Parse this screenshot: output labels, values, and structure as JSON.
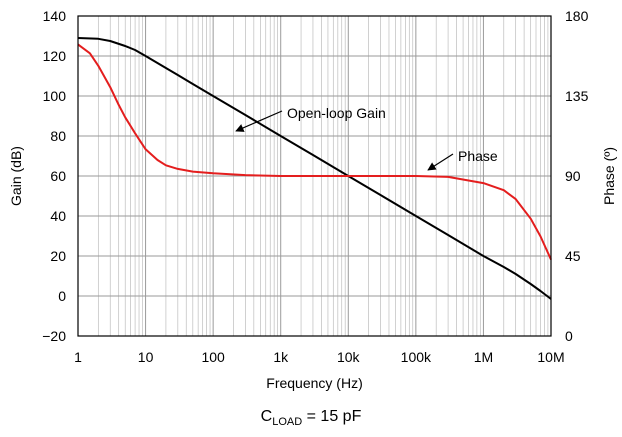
{
  "caption": {
    "prefix": "C",
    "subscript": "LOAD",
    "suffix": " = 15 pF"
  },
  "chart_data": {
    "type": "line",
    "xlabel": "Frequency (Hz)",
    "ylabel": "Gain (dB)",
    "y2label": "Phase (º)",
    "xscale": "log",
    "xlim": [
      1,
      10000000
    ],
    "ylim": [
      -20,
      140
    ],
    "y2lim": [
      0,
      180
    ],
    "grid": true,
    "x_ticks": [
      {
        "v": 1,
        "label": "1"
      },
      {
        "v": 10,
        "label": "10"
      },
      {
        "v": 100,
        "label": "100"
      },
      {
        "v": 1000,
        "label": "1k"
      },
      {
        "v": 10000,
        "label": "10k"
      },
      {
        "v": 100000,
        "label": "100k"
      },
      {
        "v": 1000000,
        "label": "1M"
      },
      {
        "v": 10000000,
        "label": "10M"
      }
    ],
    "y_ticks": [
      {
        "v": -20,
        "label": "−20"
      },
      {
        "v": 0,
        "label": "0"
      },
      {
        "v": 20,
        "label": "20"
      },
      {
        "v": 40,
        "label": "40"
      },
      {
        "v": 60,
        "label": "60"
      },
      {
        "v": 80,
        "label": "80"
      },
      {
        "v": 100,
        "label": "100"
      },
      {
        "v": 120,
        "label": "120"
      },
      {
        "v": 140,
        "label": "140"
      }
    ],
    "y2_ticks": [
      {
        "v": 0,
        "label": "0"
      },
      {
        "v": 45,
        "label": "45"
      },
      {
        "v": 90,
        "label": "90"
      },
      {
        "v": 135,
        "label": "135"
      },
      {
        "v": 180,
        "label": "180"
      }
    ],
    "series": [
      {
        "name": "Open-loop Gain",
        "axis": "left",
        "color": "#000000",
        "points": [
          [
            1,
            129
          ],
          [
            2,
            128.6
          ],
          [
            3,
            127.5
          ],
          [
            5,
            125
          ],
          [
            7,
            123
          ],
          [
            10,
            120
          ],
          [
            20,
            114
          ],
          [
            30,
            110.5
          ],
          [
            50,
            106
          ],
          [
            100,
            100
          ],
          [
            300,
            90.5
          ],
          [
            1000,
            80
          ],
          [
            3000,
            70.5
          ],
          [
            10000,
            60
          ],
          [
            30000,
            50.5
          ],
          [
            100000,
            40
          ],
          [
            300000,
            30.5
          ],
          [
            1000000,
            20
          ],
          [
            2000000,
            14.5
          ],
          [
            3000000,
            11
          ],
          [
            5000000,
            6
          ],
          [
            7000000,
            2.5
          ],
          [
            10000000,
            -1.5
          ]
        ]
      },
      {
        "name": "Phase",
        "axis": "right",
        "color": "#e41e1e",
        "points": [
          [
            1,
            164
          ],
          [
            1.5,
            159
          ],
          [
            2,
            152
          ],
          [
            3,
            140
          ],
          [
            4,
            130
          ],
          [
            5,
            123
          ],
          [
            7,
            114
          ],
          [
            10,
            105
          ],
          [
            15,
            99
          ],
          [
            20,
            96
          ],
          [
            30,
            94
          ],
          [
            50,
            92.5
          ],
          [
            100,
            91.5
          ],
          [
            300,
            90.5
          ],
          [
            1000,
            90
          ],
          [
            10000,
            90
          ],
          [
            100000,
            90
          ],
          [
            300000,
            89.5
          ],
          [
            1000000,
            86
          ],
          [
            2000000,
            82
          ],
          [
            3000000,
            77
          ],
          [
            5000000,
            66
          ],
          [
            7000000,
            56
          ],
          [
            10000000,
            43
          ]
        ]
      }
    ],
    "annotations": [
      {
        "text": "Open-loop Gain",
        "series": "Open-loop Gain"
      },
      {
        "text": "Phase",
        "series": "Phase"
      }
    ]
  }
}
